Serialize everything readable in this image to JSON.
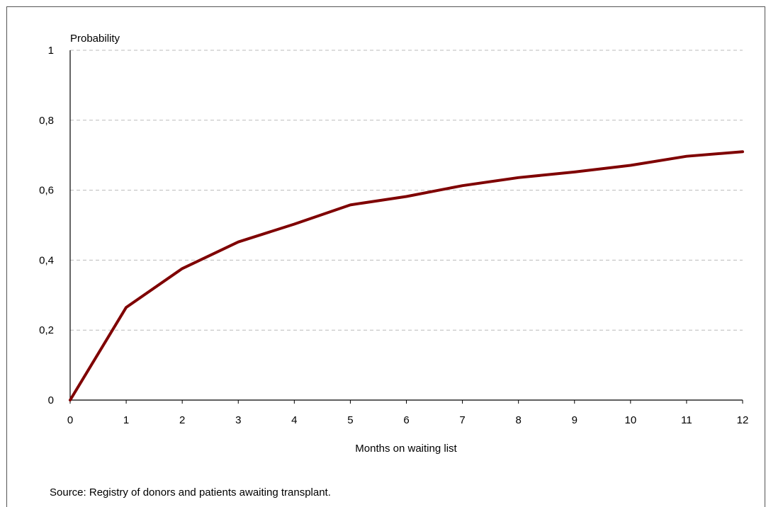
{
  "chart_data": {
    "type": "line",
    "ylabel": "Probability",
    "xlabel": "Months on waiting list",
    "x": [
      0,
      1,
      2,
      3,
      4,
      5,
      6,
      7,
      8,
      9,
      10,
      11,
      12
    ],
    "series": [
      {
        "values": [
          0,
          0.265,
          0.376,
          0.452,
          0.503,
          0.558,
          0.582,
          0.613,
          0.636,
          0.652,
          0.671,
          0.697,
          0.71
        ],
        "color": "#7f0000"
      }
    ],
    "xlim": [
      0,
      12
    ],
    "ylim": [
      0,
      1
    ],
    "y_ticks": [
      0,
      0.2,
      0.4,
      0.6,
      0.8,
      1
    ],
    "y_tick_labels": [
      "0",
      "0,2",
      "0,4",
      "0,6",
      "0,8",
      "1"
    ],
    "x_tick_labels": [
      "0",
      "1",
      "2",
      "3",
      "4",
      "5",
      "6",
      "7",
      "8",
      "9",
      "10",
      "11",
      "12"
    ],
    "grid": "horizontal dashed",
    "gridColor": "#bbbbbb",
    "axisColor": "#000000"
  },
  "source": "Source: Registry of donors and patients awaiting transplant."
}
